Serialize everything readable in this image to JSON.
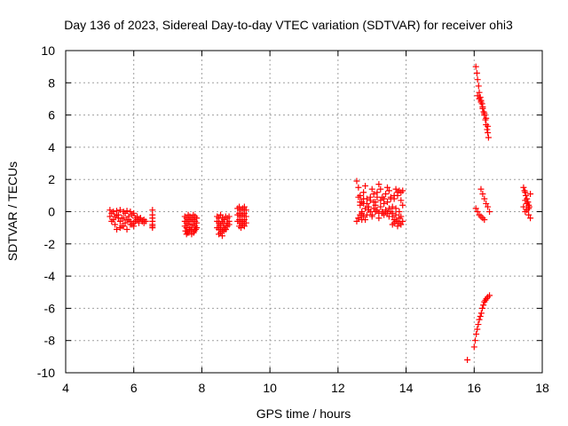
{
  "chart_data": {
    "type": "scatter",
    "title": "Day 136 of 2023, Sidereal Day-to-day VTEC variation (SDTVAR) for receiver ohi3",
    "xlabel": "GPS time / hours",
    "ylabel": "SDTVAR / TECUs",
    "xlim": [
      4,
      18
    ],
    "ylim": [
      -10,
      10
    ],
    "x_ticks": [
      "4",
      "6",
      "8",
      "10",
      "12",
      "14",
      "16",
      "18"
    ],
    "y_ticks": [
      "10",
      "8",
      "6",
      "4",
      "2",
      "0",
      "-2",
      "-4",
      "-6",
      "-8",
      "-10"
    ],
    "grid": true,
    "legend": "none",
    "marker_color": "#ff0000",
    "marker": "plus",
    "series": [
      {
        "x": [
          5.3,
          5.35,
          5.4,
          5.45,
          5.5,
          5.55,
          5.6,
          5.65,
          5.7,
          5.75,
          5.8,
          5.85,
          5.9,
          5.95,
          6.0,
          6.05,
          6.1,
          6.15,
          6.2,
          6.25,
          6.3,
          6.35,
          5.3,
          5.4,
          5.5,
          5.6,
          5.7,
          5.8,
          5.9,
          6.0,
          6.1,
          6.2,
          6.3,
          5.35,
          5.45,
          5.55,
          5.65,
          5.75,
          5.85,
          5.95,
          6.05,
          6.15,
          6.25,
          5.5,
          5.6,
          5.7,
          5.8,
          5.9,
          6.0,
          6.55,
          6.55,
          6.55,
          6.55,
          6.55,
          6.55,
          6.55,
          7.5,
          7.55,
          7.6,
          7.65,
          7.7,
          7.75,
          7.8,
          7.85,
          7.5,
          7.55,
          7.6,
          7.65,
          7.7,
          7.75,
          7.8,
          7.85,
          7.5,
          7.55,
          7.6,
          7.65,
          7.7,
          7.75,
          7.8,
          7.85,
          7.52,
          7.58,
          7.64,
          7.7,
          7.76,
          7.82,
          7.55,
          7.62,
          7.7,
          7.78,
          8.45,
          8.5,
          8.55,
          8.6,
          8.65,
          8.7,
          8.75,
          8.8,
          8.45,
          8.5,
          8.55,
          8.6,
          8.65,
          8.7,
          8.75,
          8.8,
          8.45,
          8.5,
          8.55,
          8.6,
          8.65,
          8.7,
          8.75,
          8.8,
          8.5,
          8.55,
          8.6,
          8.65,
          8.7,
          9.05,
          9.1,
          9.15,
          9.2,
          9.25,
          9.3,
          9.05,
          9.1,
          9.15,
          9.2,
          9.25,
          9.3,
          9.05,
          9.1,
          9.15,
          9.2,
          9.25,
          9.3,
          9.1,
          9.15,
          9.2,
          9.25,
          12.55,
          12.6,
          12.65,
          12.7,
          12.75,
          12.8,
          12.85,
          12.9,
          12.95,
          13.0,
          13.05,
          13.1,
          13.15,
          13.2,
          13.25,
          13.3,
          13.35,
          13.4,
          13.45,
          13.5,
          13.55,
          13.6,
          13.65,
          13.7,
          13.75,
          13.8,
          13.85,
          13.9,
          12.6,
          12.65,
          12.7,
          12.75,
          12.8,
          12.85,
          12.9,
          12.95,
          13.0,
          13.05,
          13.1,
          13.15,
          13.2,
          13.25,
          13.3,
          13.35,
          13.4,
          13.45,
          13.5,
          13.55,
          13.6,
          13.65,
          13.7,
          13.75,
          13.8,
          13.85,
          12.6,
          12.7,
          12.8,
          12.9,
          13.0,
          13.1,
          13.2,
          13.3,
          13.4,
          13.5,
          13.6,
          13.7,
          13.8,
          13.9,
          12.65,
          12.75,
          12.85,
          12.95,
          13.05,
          13.15,
          13.25,
          13.35,
          13.45,
          13.55,
          13.65,
          13.75,
          13.85,
          12.55,
          12.6,
          12.65,
          12.7,
          12.75,
          13.6,
          13.65,
          13.7,
          13.75,
          13.8,
          13.85,
          13.9,
          16.05,
          16.08,
          16.1,
          16.13,
          16.15,
          16.18,
          16.2,
          16.23,
          16.25,
          16.28,
          16.3,
          16.33,
          16.35,
          16.38,
          16.4,
          16.42,
          16.1,
          16.15,
          16.2,
          16.25,
          16.3,
          16.35,
          16.4,
          16.2,
          16.25,
          16.3,
          16.35,
          16.4,
          16.45,
          16.05,
          16.1,
          16.15,
          16.2,
          16.25,
          16.3,
          15.8,
          16.0,
          16.03,
          16.06,
          16.09,
          16.12,
          16.15,
          16.18,
          16.21,
          16.24,
          16.27,
          16.3,
          16.33,
          16.36,
          16.4,
          16.45,
          17.45,
          17.48,
          17.5,
          17.52,
          17.55,
          17.58,
          17.6,
          17.62,
          17.65,
          17.45,
          17.5,
          17.55,
          17.6,
          17.65,
          17.5,
          17.55,
          17.6
        ],
        "y": [
          0.1,
          -0.1,
          0.0,
          -0.3,
          0.05,
          -0.2,
          0.1,
          -0.4,
          0.0,
          -0.1,
          0.05,
          -0.3,
          0.0,
          -0.2,
          -0.1,
          -0.4,
          -0.3,
          -0.5,
          -0.4,
          -0.6,
          -0.5,
          -0.6,
          -0.3,
          -0.5,
          -0.2,
          -0.6,
          -0.4,
          -0.5,
          -0.6,
          -0.7,
          -0.5,
          -0.4,
          -0.7,
          -0.6,
          -0.8,
          -0.4,
          -0.9,
          -0.7,
          -0.5,
          -0.8,
          -0.6,
          -0.7,
          -0.6,
          -1.1,
          -1.0,
          -0.9,
          -1.1,
          -0.8,
          -0.9,
          0.1,
          -0.2,
          -0.4,
          -0.6,
          -0.8,
          -1.0,
          -0.9,
          -0.3,
          -0.4,
          -0.2,
          -0.3,
          -0.4,
          -0.2,
          -0.3,
          -0.4,
          -0.6,
          -0.7,
          -0.5,
          -0.6,
          -0.8,
          -0.5,
          -0.6,
          -0.7,
          -0.9,
          -1.0,
          -0.8,
          -1.0,
          -1.1,
          -0.8,
          -0.9,
          -1.0,
          -1.2,
          -1.3,
          -1.1,
          -1.2,
          -1.3,
          -1.1,
          -1.4,
          -1.3,
          -1.4,
          -1.2,
          -0.3,
          -0.4,
          -0.2,
          -0.4,
          -0.5,
          -0.3,
          -0.4,
          -0.3,
          -0.6,
          -0.7,
          -0.8,
          -0.6,
          -0.7,
          -0.9,
          -0.7,
          -0.6,
          -1.0,
          -1.1,
          -0.9,
          -1.2,
          -1.0,
          -1.1,
          -0.9,
          -0.8,
          -1.4,
          -1.3,
          -1.5,
          -1.2,
          -1.1,
          0.2,
          0.3,
          0.1,
          0.2,
          0.3,
          0.1,
          -0.2,
          -0.1,
          -0.3,
          -0.2,
          -0.1,
          -0.3,
          -0.6,
          -0.5,
          -0.7,
          -0.6,
          -0.5,
          -0.7,
          -0.9,
          -1.0,
          -0.8,
          -0.9,
          1.9,
          1.5,
          1.0,
          0.6,
          1.2,
          1.6,
          0.8,
          0.3,
          0.9,
          1.4,
          1.1,
          0.6,
          1.2,
          1.7,
          1.4,
          0.9,
          0.5,
          1.1,
          1.5,
          1.3,
          0.8,
          0.3,
          1.0,
          1.4,
          1.2,
          1.3,
          1.2,
          1.3,
          0.9,
          0.4,
          0.0,
          0.5,
          0.2,
          -0.2,
          0.3,
          0.0,
          -0.3,
          0.2,
          0.4,
          0.1,
          -0.1,
          0.3,
          0.0,
          -0.2,
          0.1,
          -0.1,
          0.2,
          0.0,
          -0.3,
          -0.5,
          -0.2,
          -0.6,
          -0.4,
          -0.3,
          -0.4,
          -0.1,
          -0.5,
          0.1,
          -0.2,
          0.0,
          -0.4,
          -0.1,
          0.0,
          -0.3,
          -0.1,
          0.2,
          0.0,
          0.4,
          0.6,
          0.8,
          0.5,
          0.7,
          0.6,
          0.9,
          0.7,
          0.8,
          0.6,
          0.9,
          0.8,
          1.0,
          0.7,
          -0.6,
          -0.4,
          -0.2,
          -0.5,
          -0.3,
          -0.8,
          -0.7,
          -0.6,
          -0.9,
          -0.7,
          -0.8,
          -0.6,
          9.0,
          8.6,
          8.2,
          7.8,
          7.4,
          7.1,
          6.9,
          6.7,
          6.5,
          6.2,
          6.0,
          5.7,
          5.4,
          5.1,
          4.9,
          4.6,
          7.2,
          7.0,
          6.8,
          6.4,
          6.1,
          5.8,
          5.3,
          1.4,
          1.1,
          0.8,
          0.5,
          0.3,
          0.0,
          0.2,
          0.0,
          -0.2,
          -0.3,
          -0.4,
          -0.5,
          -9.2,
          -8.4,
          -8.0,
          -7.6,
          -7.3,
          -7.0,
          -6.7,
          -6.5,
          -6.3,
          -6.0,
          -5.8,
          -5.6,
          -5.5,
          -5.4,
          -5.3,
          -5.2,
          1.5,
          1.3,
          1.2,
          1.0,
          0.8,
          0.6,
          0.4,
          0.3,
          1.1,
          0.3,
          0.0,
          0.1,
          -0.2,
          -0.4,
          0.7,
          0.5,
          0.2
        ]
      }
    ]
  }
}
